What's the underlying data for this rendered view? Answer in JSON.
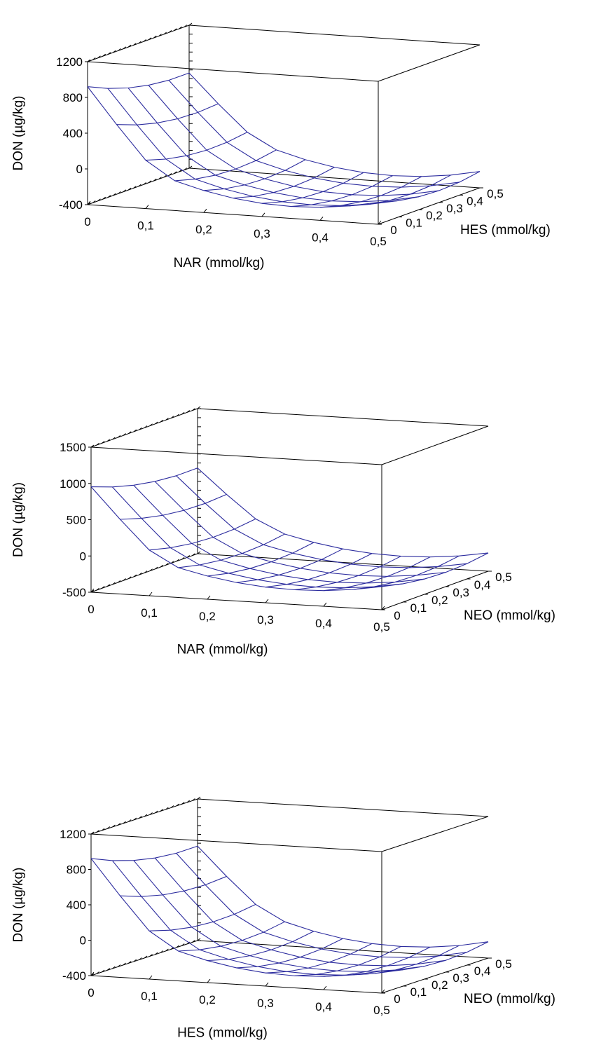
{
  "chart_data": [
    {
      "type": "surface",
      "zlabel": "DON (µg/kg)",
      "xlabel": "NAR (mmol/kg)",
      "ylabel": "HES (mmol/kg)",
      "zticks": [
        "1200",
        "800",
        "400",
        "0",
        "-400"
      ],
      "zlim": [
        -400,
        1200
      ],
      "xticks": [
        "0",
        "0,1",
        "0,2",
        "0,3",
        "0,4",
        "0,5"
      ],
      "yticks": [
        "0",
        "0,1",
        "0,2",
        "0,3",
        "0,4",
        "0,5"
      ],
      "xlim": [
        0,
        0.5
      ],
      "ylim": [
        0,
        0.5
      ],
      "grid_x": [
        0,
        0.05,
        0.1,
        0.15,
        0.2,
        0.25,
        0.3,
        0.35,
        0.4,
        0.45,
        0.5
      ],
      "grid_y": [
        0,
        0.1,
        0.2,
        0.3,
        0.4,
        0.5
      ],
      "model": {
        "c": -380,
        "ax": 1450,
        "bx": 5000,
        "ay": 1100,
        "by": 3600
      },
      "surface_color": "#2b2b9e"
    },
    {
      "type": "surface",
      "zlabel": "DON (µg/kg)",
      "xlabel": "NAR (mmol/kg)",
      "ylabel": "NEO (mmol/kg)",
      "zticks": [
        "1500",
        "1000",
        "500",
        "0",
        "-500"
      ],
      "zlim": [
        -500,
        1500
      ],
      "xticks": [
        "0",
        "0,1",
        "0,2",
        "0,3",
        "0,4",
        "0,5"
      ],
      "yticks": [
        "0",
        "0,1",
        "0,2",
        "0,3",
        "0,4",
        "0,5"
      ],
      "xlim": [
        0,
        0.5
      ],
      "ylim": [
        0,
        0.5
      ],
      "grid_x": [
        0,
        0.05,
        0.1,
        0.15,
        0.2,
        0.25,
        0.3,
        0.35,
        0.4,
        0.45,
        0.5
      ],
      "grid_y": [
        0,
        0.1,
        0.2,
        0.3,
        0.4,
        0.5
      ],
      "model": {
        "c": -420,
        "ax": 1550,
        "bx": 5200,
        "ay": 1200,
        "by": 3900
      },
      "surface_color": "#2b2b9e"
    },
    {
      "type": "surface",
      "zlabel": "DON (µg/kg)",
      "xlabel": "HES (mmol/kg)",
      "ylabel": "NEO (mmol/kg)",
      "zticks": [
        "1200",
        "800",
        "400",
        "0",
        "-400"
      ],
      "zlim": [
        -400,
        1200
      ],
      "xticks": [
        "0",
        "0,1",
        "0,2",
        "0,3",
        "0,4",
        "0,5"
      ],
      "yticks": [
        "0",
        "0,1",
        "0,2",
        "0,3",
        "0,4",
        "0,5"
      ],
      "xlim": [
        0,
        0.5
      ],
      "ylim": [
        0,
        0.5
      ],
      "grid_x": [
        0,
        0.05,
        0.1,
        0.15,
        0.2,
        0.25,
        0.3,
        0.35,
        0.4,
        0.45,
        0.5
      ],
      "grid_y": [
        0,
        0.1,
        0.2,
        0.3,
        0.4,
        0.5
      ],
      "model": {
        "c": -380,
        "ax": 1450,
        "bx": 5000,
        "ay": 1150,
        "by": 3700
      },
      "surface_color": "#2b2b9e"
    }
  ]
}
